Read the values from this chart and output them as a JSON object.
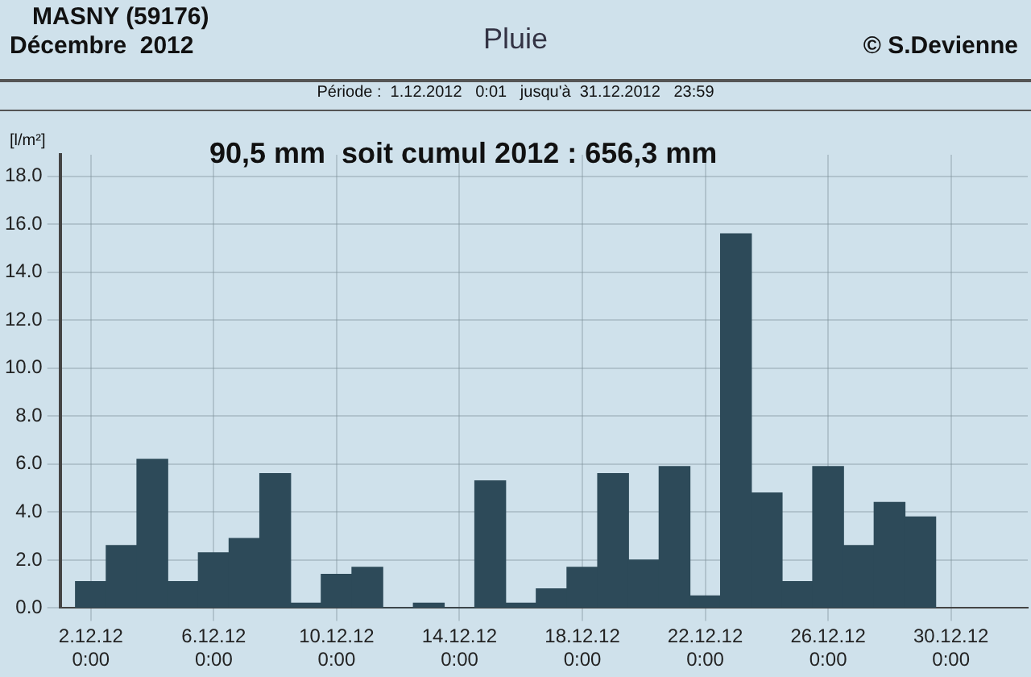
{
  "chart_data": {
    "type": "bar",
    "title": "Pluie",
    "subtitle": "Période :  1.12.2012   0:01   jusqu'à  31.12.2012   23:59",
    "ylabel": "[l/m²]",
    "annotations": [
      "MASNY (59176)",
      "Décembre  2012",
      "© S.Devienne",
      "90,5 mm  soit cumul 2012 : 656,3 mm"
    ],
    "x": [
      "2012-12-02",
      "2012-12-03",
      "2012-12-04",
      "2012-12-05",
      "2012-12-06",
      "2012-12-07",
      "2012-12-08",
      "2012-12-09",
      "2012-12-10",
      "2012-12-11",
      "2012-12-12",
      "2012-12-13",
      "2012-12-14",
      "2012-12-15",
      "2012-12-16",
      "2012-12-17",
      "2012-12-18",
      "2012-12-19",
      "2012-12-20",
      "2012-12-21",
      "2012-12-22",
      "2012-12-23",
      "2012-12-24",
      "2012-12-25",
      "2012-12-26",
      "2012-12-27",
      "2012-12-28",
      "2012-12-29"
    ],
    "values": [
      1.1,
      2.6,
      6.2,
      1.1,
      2.3,
      2.9,
      5.6,
      0.2,
      1.4,
      1.7,
      0,
      0.2,
      0,
      5.3,
      0.2,
      0.8,
      1.7,
      5.6,
      2.0,
      5.9,
      0.5,
      15.6,
      4.8,
      1.1,
      5.9,
      2.6,
      4.4,
      3.8
    ],
    "color": "#2d4a59",
    "xlim": [
      "2012-12-01T00:00",
      "2013-01-01T12:00"
    ],
    "xticks": [
      {
        "value": "2012-12-02T00:00",
        "label": "2.12.12\n0:00"
      },
      {
        "value": "2012-12-06T00:00",
        "label": "6.12.12\n0:00"
      },
      {
        "value": "2012-12-10T00:00",
        "label": "10.12.12\n0:00"
      },
      {
        "value": "2012-12-14T00:00",
        "label": "14.12.12\n0:00"
      },
      {
        "value": "2012-12-18T00:00",
        "label": "18.12.12\n0:00"
      },
      {
        "value": "2012-12-22T00:00",
        "label": "22.12.12\n0:00"
      },
      {
        "value": "2012-12-26T00:00",
        "label": "26.12.12\n0:00"
      },
      {
        "value": "2012-12-30T00:00",
        "label": "30.12.12\n0:00"
      }
    ],
    "ylim": [
      0,
      18.9
    ],
    "yticks": [
      {
        "value": 0,
        "label": "0.0"
      },
      {
        "value": 2,
        "label": "2.0"
      },
      {
        "value": 4,
        "label": "4.0"
      },
      {
        "value": 6,
        "label": "6.0"
      },
      {
        "value": 8,
        "label": "8.0"
      },
      {
        "value": 10,
        "label": "10.0"
      },
      {
        "value": 12,
        "label": "12.0"
      },
      {
        "value": 14,
        "label": "14.0"
      },
      {
        "value": 16,
        "label": "16.0"
      },
      {
        "value": 18,
        "label": "18.0"
      }
    ],
    "grid": true,
    "legend": false
  }
}
